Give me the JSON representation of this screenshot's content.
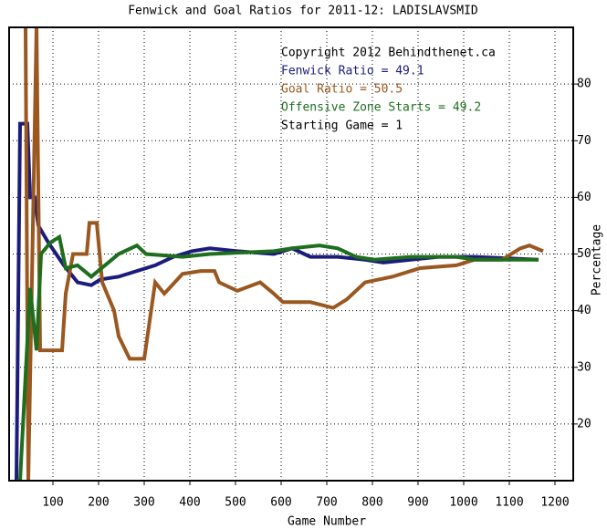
{
  "chart_data": {
    "type": "line",
    "title": "Fenwick and Goal Ratios for 2011-12: LADISLAVSMID",
    "x_label": "Game Number",
    "y_label": "Percentage",
    "annotations": [
      "Copyright 2012 Behindthenet.ca",
      "Starting Game = 1"
    ],
    "xlim": [
      4,
      1240
    ],
    "ylim": [
      10,
      90
    ],
    "xticks": [
      100,
      200,
      300,
      400,
      500,
      600,
      700,
      800,
      900,
      1000,
      1100,
      1200
    ],
    "yticks": [
      20,
      30,
      40,
      50,
      60,
      70,
      80
    ],
    "grid": true,
    "series": [
      {
        "name": "Fenwick Ratio = 49.1",
        "color": "#1c1c7c",
        "x": [
          20,
          28,
          44,
          50,
          60,
          68,
          90,
          124,
          154,
          184,
          204,
          244,
          284,
          324,
          364,
          404,
          444,
          504,
          584,
          624,
          664,
          724,
          784,
          824,
          884,
          944,
          1024,
          1164
        ],
        "values": [
          10,
          73,
          73,
          60,
          60,
          55,
          52,
          48,
          45,
          44.5,
          45.5,
          46,
          47,
          48,
          49.5,
          50.5,
          51,
          50.5,
          50,
          51,
          49.5,
          49.5,
          49,
          48.5,
          49,
          49.5,
          49.5,
          49
        ]
      },
      {
        "name": "Goal Ratio = 50.5",
        "color": "#9a5820",
        "x": [
          36,
          40,
          46,
          64,
          72,
          120,
          128,
          144,
          174,
          180,
          196,
          208,
          234,
          244,
          268,
          300,
          324,
          344,
          384,
          424,
          454,
          464,
          504,
          554,
          584,
          604,
          664,
          714,
          744,
          784,
          844,
          904,
          984,
          1024,
          1084,
          1124,
          1144,
          1174
        ],
        "values": [
          90,
          90,
          10,
          90,
          33,
          33,
          43,
          50,
          50,
          55.5,
          55.5,
          45,
          40,
          35.5,
          31.5,
          31.5,
          45,
          43,
          46.5,
          47,
          47,
          45,
          43.5,
          45,
          43,
          41.5,
          41.5,
          40.5,
          42,
          45,
          46,
          47.5,
          48,
          49,
          49,
          51,
          51.5,
          50.5
        ]
      },
      {
        "name": "Offensive Zone Starts = 49.2",
        "color": "#1e6e1e",
        "x": [
          20,
          28,
          50,
          64,
          74,
          94,
          114,
          128,
          154,
          184,
          214,
          244,
          284,
          304,
          384,
          444,
          584,
          624,
          684,
          724,
          764,
          804,
          884,
          984,
          1024,
          1164
        ],
        "values": [
          10,
          10,
          44,
          33,
          50,
          52,
          53,
          47.5,
          48,
          46,
          48,
          50,
          51.5,
          50,
          49.5,
          50,
          50.5,
          51,
          51.5,
          51,
          49.5,
          49,
          49.5,
          49.5,
          49,
          49
        ]
      }
    ]
  }
}
